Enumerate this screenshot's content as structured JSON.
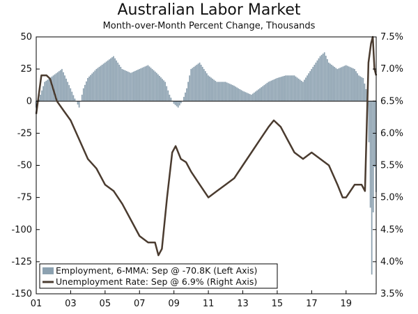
{
  "chart_data": {
    "type": "bar",
    "title": "Australian Labor Market",
    "subtitle": "Month-over-Month Percent Change, Thousands",
    "x_tick_labels": [
      "01",
      "03",
      "05",
      "07",
      "09",
      "11",
      "13",
      "15",
      "17",
      "19"
    ],
    "x_tick_years": [
      2001,
      2003,
      2005,
      2007,
      2009,
      2011,
      2013,
      2015,
      2017,
      2019
    ],
    "x_range": [
      2001.0,
      2020.75
    ],
    "left_axis": {
      "ylim": [
        -150,
        50
      ],
      "ticks": [
        50,
        25,
        0,
        -25,
        -50,
        -75,
        -100,
        -125,
        -150
      ]
    },
    "right_axis": {
      "ylim": [
        3.5,
        7.5
      ],
      "ticks": [
        7.5,
        7.0,
        6.5,
        6.0,
        5.5,
        5.0,
        4.5,
        4.0,
        3.5
      ],
      "tick_labels": [
        "7.5%",
        "7.0%",
        "6.5%",
        "6.0%",
        "5.5%",
        "5.0%",
        "4.5%",
        "4.0%",
        "3.5%"
      ]
    },
    "grid": false,
    "legend_position": "bottom-left",
    "colors": {
      "bars": "#8ca1b0",
      "line": "#4a3b2f",
      "zero_line": "#000000"
    },
    "series": [
      {
        "name": "Employment, 6-MMA: Sep @ -70.8K (Left Axis)",
        "kind": "bar",
        "axis": "left",
        "x": [
          2001.0,
          2001.5,
          2002.0,
          2002.5,
          2003.0,
          2003.25,
          2003.5,
          2003.75,
          2004.0,
          2004.5,
          2005.0,
          2005.5,
          2005.75,
          2006.0,
          2006.5,
          2007.0,
          2007.5,
          2008.0,
          2008.5,
          2008.75,
          2009.0,
          2009.25,
          2009.5,
          2009.75,
          2010.0,
          2010.5,
          2011.0,
          2011.5,
          2012.0,
          2012.5,
          2013.0,
          2013.5,
          2014.0,
          2014.5,
          2015.0,
          2015.5,
          2016.0,
          2016.5,
          2017.0,
          2017.5,
          2017.75,
          2018.0,
          2018.5,
          2019.0,
          2019.5,
          2019.75,
          2020.0,
          2020.25,
          2020.33,
          2020.42,
          2020.5,
          2020.58,
          2020.67,
          2020.75
        ],
        "y": [
          -5,
          15,
          20,
          25,
          10,
          2,
          -5,
          10,
          18,
          25,
          30,
          35,
          30,
          25,
          22,
          25,
          28,
          22,
          15,
          5,
          -2,
          -5,
          0,
          10,
          25,
          30,
          20,
          15,
          15,
          12,
          8,
          5,
          10,
          15,
          18,
          20,
          20,
          15,
          25,
          35,
          38,
          30,
          25,
          28,
          25,
          20,
          18,
          5,
          -30,
          -85,
          -135,
          -88,
          -50,
          -70.8
        ]
      },
      {
        "name": "Unemployment Rate: Sep @ 6.9% (Right Axis)",
        "kind": "line",
        "axis": "right",
        "x": [
          2001.0,
          2001.3,
          2001.6,
          2001.8,
          2002.2,
          2002.6,
          2003.0,
          2003.5,
          2004.0,
          2004.5,
          2005.0,
          2005.5,
          2006.0,
          2006.5,
          2007.0,
          2007.5,
          2007.9,
          2008.1,
          2008.3,
          2008.6,
          2008.9,
          2009.1,
          2009.4,
          2009.7,
          2010.0,
          2010.5,
          2011.0,
          2011.5,
          2012.0,
          2012.5,
          2013.0,
          2013.5,
          2014.0,
          2014.5,
          2014.8,
          2015.2,
          2015.6,
          2016.0,
          2016.5,
          2017.0,
          2017.5,
          2018.0,
          2018.5,
          2018.8,
          2019.0,
          2019.5,
          2019.9,
          2020.1,
          2020.3,
          2020.45,
          2020.55,
          2020.65,
          2020.75
        ],
        "y": [
          6.3,
          6.9,
          6.9,
          6.85,
          6.5,
          6.35,
          6.2,
          5.9,
          5.6,
          5.45,
          5.2,
          5.1,
          4.9,
          4.65,
          4.4,
          4.3,
          4.3,
          4.1,
          4.2,
          5.0,
          5.7,
          5.8,
          5.6,
          5.55,
          5.4,
          5.2,
          5.0,
          5.1,
          5.2,
          5.3,
          5.5,
          5.7,
          5.9,
          6.1,
          6.2,
          6.1,
          5.9,
          5.7,
          5.6,
          5.7,
          5.6,
          5.5,
          5.2,
          5.0,
          5.0,
          5.2,
          5.2,
          5.1,
          7.1,
          7.4,
          7.5,
          7.0,
          6.9
        ]
      }
    ]
  }
}
